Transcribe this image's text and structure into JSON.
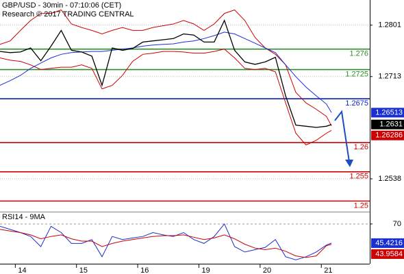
{
  "chart_data": [
    {
      "type": "line",
      "title": "GBP/USD - 30min - 07:10:06 (CET)",
      "subtitle": "Research © 2017 TRADING CENTRAL",
      "x": [
        0,
        4,
        8,
        12,
        16,
        20,
        24,
        28,
        32,
        36,
        40,
        44,
        48,
        52,
        56,
        60,
        64,
        68,
        72,
        76,
        80,
        84,
        88,
        92,
        96,
        100,
        104,
        108,
        112,
        116,
        120,
        124,
        128,
        130
      ],
      "xlim": [
        0,
        145
      ],
      "ylim": [
        1.2483,
        1.2844
      ],
      "yticks": [
        1.2801,
        1.2713,
        1.2538
      ],
      "grid": true,
      "series": [
        {
          "color": "#cc0000",
          "label_last": true,
          "values": [
            1.2768,
            1.2774,
            1.2792,
            1.2809,
            1.2821,
            1.2821,
            1.2827,
            1.2803,
            1.2797,
            1.2792,
            1.2786,
            1.2792,
            1.2797,
            1.2792,
            1.2792,
            1.2797,
            1.28,
            1.2803,
            1.2809,
            1.2803,
            1.2792,
            1.2803,
            1.2821,
            1.2827,
            1.2809,
            1.278,
            1.2762,
            1.2751,
            1.2733,
            1.2686,
            1.2668,
            1.2657,
            1.2645,
            1.26286
          ]
        },
        {
          "color": "#cc0000",
          "label_last": false,
          "values": [
            1.2745,
            1.2741,
            1.2739,
            1.2733,
            1.2725,
            1.2727,
            1.2729,
            1.2729,
            1.2733,
            1.2727,
            1.2692,
            1.2698,
            1.2715,
            1.2739,
            1.2751,
            1.2753,
            1.2756,
            1.2756,
            1.2755,
            1.2753,
            1.2753,
            1.2756,
            1.276,
            1.2745,
            1.2727,
            1.2725,
            1.2727,
            1.2721,
            1.2668,
            1.2616,
            1.2596,
            1.2604,
            1.2616,
            1.2621
          ]
        },
        {
          "color": "#1a2fd0",
          "label_last": true,
          "values": [
            1.2698,
            1.2706,
            1.2715,
            1.2727,
            1.2736,
            1.2745,
            1.2751,
            1.2754,
            1.2755,
            1.2756,
            1.2756,
            1.2758,
            1.276,
            1.2762,
            1.2765,
            1.2767,
            1.2768,
            1.2769,
            1.2772,
            1.2774,
            1.2778,
            1.2783,
            1.2789,
            1.2786,
            1.2778,
            1.277,
            1.2762,
            1.2754,
            1.2733,
            1.2713,
            1.2695,
            1.268,
            1.2666,
            1.26513
          ]
        },
        {
          "color": "#000000",
          "label_last": true,
          "values": [
            1.2756,
            1.2754,
            1.2755,
            1.2762,
            1.274,
            1.2765,
            1.2792,
            1.2758,
            1.2755,
            1.2748,
            1.2698,
            1.2762,
            1.2758,
            1.2761,
            1.2772,
            1.2774,
            1.2776,
            1.2778,
            1.2786,
            1.2784,
            1.2772,
            1.2772,
            1.2809,
            1.2758,
            1.2738,
            1.2734,
            1.2738,
            1.2746,
            1.268,
            1.263,
            1.2628,
            1.2626,
            1.2628,
            1.2631
          ]
        }
      ],
      "levels": [
        {
          "value": 1.276,
          "color": "#2e8b2e"
        },
        {
          "value": 1.2725,
          "color": "#2e8b2e"
        },
        {
          "value": 1.2675,
          "color": "#0a1fc8"
        },
        {
          "value": 1.26,
          "color": "#d00000"
        },
        {
          "value": 1.255,
          "color": "#d00000"
        },
        {
          "value": 1.25,
          "color": "#d00000"
        }
      ]
    },
    {
      "type": "line",
      "title": "RSI14 - 9MA",
      "x": [
        0,
        4,
        8,
        12,
        16,
        20,
        24,
        28,
        32,
        36,
        40,
        44,
        48,
        52,
        56,
        60,
        64,
        68,
        72,
        76,
        80,
        84,
        88,
        92,
        96,
        100,
        104,
        108,
        112,
        116,
        120,
        124,
        128,
        130
      ],
      "xlim": [
        0,
        145
      ],
      "ylim": [
        19,
        84
      ],
      "yticks": [
        70
      ],
      "xticks": [
        {
          "value": 6,
          "label": "14"
        },
        {
          "value": 30,
          "label": "15"
        },
        {
          "value": 54,
          "label": "16"
        },
        {
          "value": 78,
          "label": "19"
        },
        {
          "value": 102,
          "label": "20"
        },
        {
          "value": 126,
          "label": "21"
        }
      ],
      "series": [
        {
          "color": "#1a2fd0",
          "label_last": true,
          "values": [
            67,
            63,
            59,
            54,
            41,
            67,
            59,
            45,
            45,
            50,
            28,
            54,
            50,
            52,
            54,
            59,
            56,
            54,
            59,
            50,
            45,
            54,
            70,
            41,
            34,
            37,
            40,
            50,
            28,
            24,
            28,
            34,
            43,
            45.4216
          ]
        },
        {
          "color": "#cc0000",
          "label_last": true,
          "values": [
            63,
            61,
            59,
            56,
            51,
            54,
            56,
            51,
            48,
            48,
            41,
            45,
            48,
            50,
            52,
            54,
            55,
            55,
            56,
            53,
            50,
            52,
            56,
            51,
            44,
            39,
            37,
            39,
            35,
            29,
            27,
            29,
            42,
            43.9584
          ]
        }
      ]
    }
  ]
}
